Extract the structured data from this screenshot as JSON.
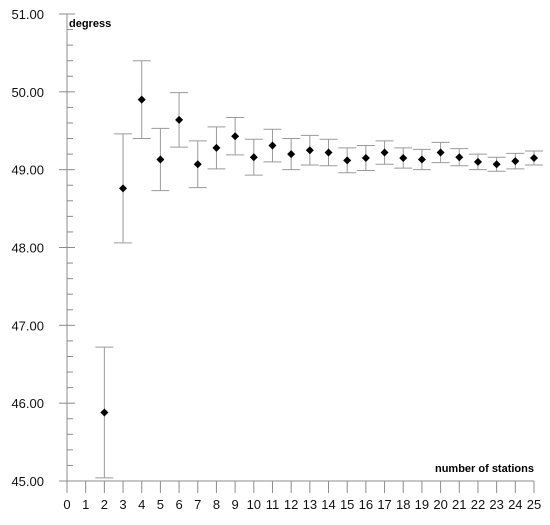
{
  "chart_data": {
    "type": "scatter",
    "title": "",
    "xlabel": "number of stations",
    "ylabel": "degress",
    "xlim": [
      0,
      25
    ],
    "ylim": [
      45.0,
      51.0
    ],
    "x_ticks": [
      0,
      1,
      2,
      3,
      4,
      5,
      6,
      7,
      8,
      9,
      10,
      11,
      12,
      13,
      14,
      15,
      16,
      17,
      18,
      19,
      20,
      21,
      22,
      23,
      24,
      25
    ],
    "y_ticks": [
      "45.00",
      "46.00",
      "47.00",
      "48.00",
      "49.00",
      "50.00",
      "51.00"
    ],
    "y_minor_step": 0.2,
    "grid": false,
    "error_bars": true,
    "series": [
      {
        "x": [
          2,
          3,
          4,
          5,
          6,
          7,
          8,
          9,
          10,
          11,
          12,
          13,
          14,
          15,
          16,
          17,
          18,
          19,
          20,
          21,
          22,
          23,
          24,
          25
        ],
        "y": [
          45.88,
          48.76,
          49.9,
          49.13,
          49.64,
          49.07,
          49.28,
          49.43,
          49.16,
          49.31,
          49.2,
          49.25,
          49.22,
          49.12,
          49.15,
          49.22,
          49.15,
          49.13,
          49.22,
          49.16,
          49.1,
          49.07,
          49.11,
          49.15
        ],
        "err": [
          0.84,
          0.7,
          0.5,
          0.4,
          0.35,
          0.3,
          0.27,
          0.24,
          0.23,
          0.21,
          0.2,
          0.19,
          0.17,
          0.16,
          0.16,
          0.15,
          0.13,
          0.13,
          0.13,
          0.11,
          0.1,
          0.09,
          0.1,
          0.09
        ]
      }
    ]
  }
}
